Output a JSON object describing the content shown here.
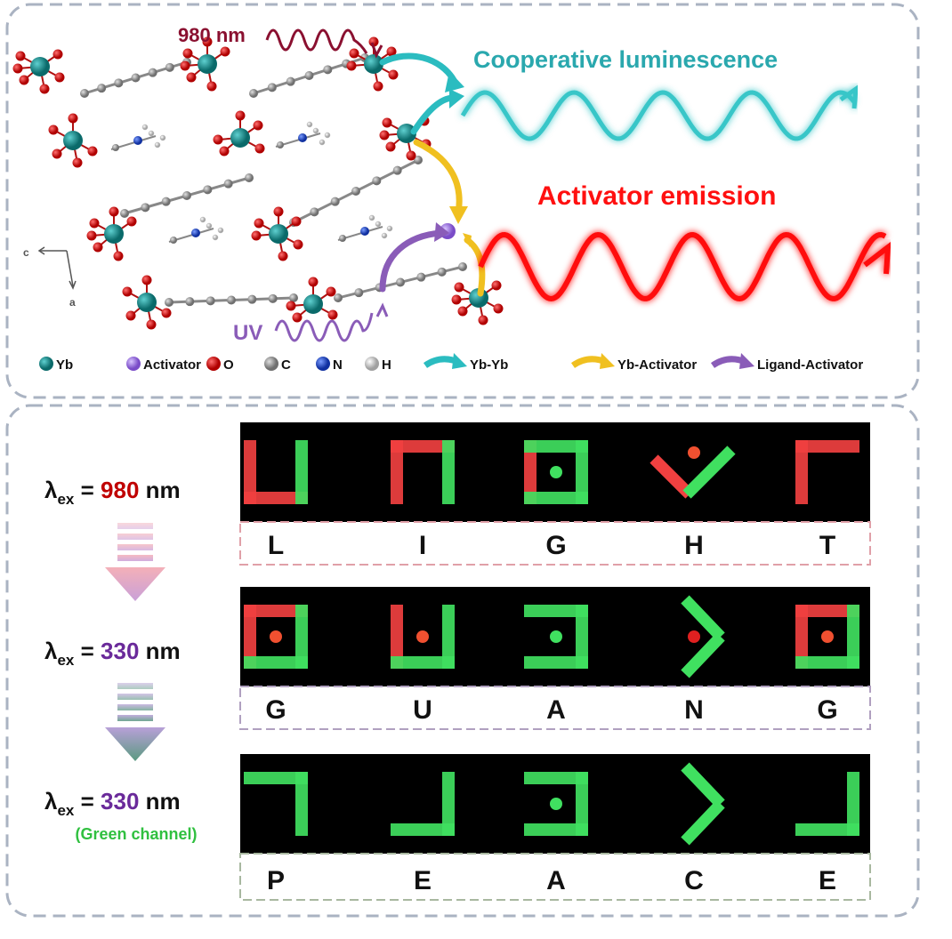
{
  "top": {
    "excitation_980": "980 nm",
    "excitation_uv": "UV",
    "cooperative": "Cooperative luminescence",
    "activator_emission": "Activator emission",
    "axis_c": "c",
    "axis_a": "a",
    "colors": {
      "yb": "#13908f",
      "activator": "#9b6fe0",
      "o": "#e00000",
      "c": "#999999",
      "n": "#2a50d0",
      "h": "#eeeeee",
      "yb_yb": "#2bbcc0",
      "yb_act": "#f0c020",
      "lig_act": "#8a5cb8",
      "red_wave": "#ff1010",
      "cyan_wave": "#38c6c8"
    }
  },
  "legend": [
    {
      "label": "Yb",
      "icon": "yb-atom"
    },
    {
      "label": "Activator",
      "icon": "activator-atom"
    },
    {
      "label": "O",
      "icon": "o-atom"
    },
    {
      "label": "C",
      "icon": "c-atom"
    },
    {
      "label": "N",
      "icon": "n-atom"
    },
    {
      "label": "H",
      "icon": "h-atom"
    },
    {
      "label": "Yb-Yb",
      "icon": "cyan-arrow"
    },
    {
      "label": "Yb-Activator",
      "icon": "yellow-arrow"
    },
    {
      "label": "Ligand-Activator",
      "icon": "purple-arrow"
    }
  ],
  "rows": [
    {
      "lambda": "λ",
      "sub": "ex",
      "eq": " = ",
      "value": "980",
      "unit": " nm",
      "value_color": "#c00000",
      "note": "",
      "letters": [
        "L",
        "I",
        "G",
        "H",
        "T"
      ]
    },
    {
      "lambda": "λ",
      "sub": "ex",
      "eq": " = ",
      "value": "330",
      "unit": " nm",
      "value_color": "#6a2a9a",
      "note": "",
      "letters": [
        "G",
        "U",
        "A",
        "N",
        "G"
      ]
    },
    {
      "lambda": "λ",
      "sub": "ex",
      "eq": " = ",
      "value": "330",
      "unit": " nm",
      "value_color": "#6a2a9a",
      "note": "(Green channel)",
      "letters": [
        "P",
        "E",
        "A",
        "C",
        "E"
      ]
    }
  ]
}
